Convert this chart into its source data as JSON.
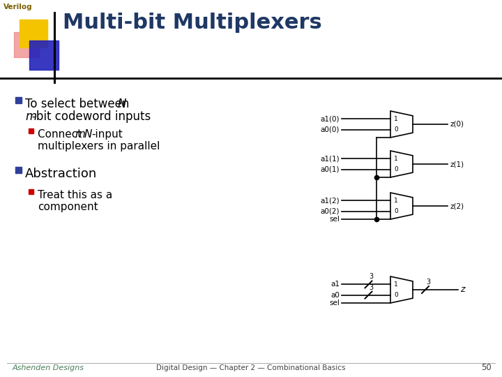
{
  "title": "Multi-bit Multiplexers",
  "verilog_label": "Verilog",
  "bg_color": "#ffffff",
  "title_color": "#1f3864",
  "title_fontsize": 22,
  "verilog_color": "#7b6000",
  "bullet_color_blue": "#2e4099",
  "bullet_color_red": "#cc0000",
  "text_color": "#000000",
  "footer_text": "Digital Design — Chapter 2 — Combinational Basics",
  "footer_page": "50",
  "footer_color": "#444444",
  "ashenden_color": "#4a7c59",
  "bullet2_main": "Abstraction",
  "diagram_color": "#000000",
  "yellow_sq": "#f5c400",
  "blue_sq": "#2222bb",
  "pink_sq": "#ee8888"
}
